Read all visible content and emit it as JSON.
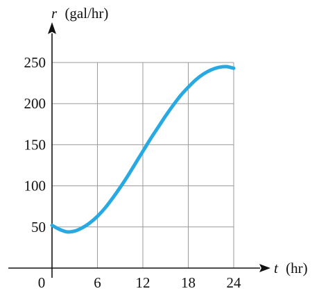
{
  "chart_data": {
    "type": "line",
    "title": "",
    "xlabel_var": "t",
    "xlabel_unit": "(hr)",
    "ylabel_var": "r",
    "ylabel_unit": "(gal/hr)",
    "xlim": [
      0,
      24
    ],
    "ylim": [
      0,
      250
    ],
    "origin_label": "0",
    "x_ticks": [
      6,
      12,
      18,
      24
    ],
    "y_ticks": [
      50,
      100,
      150,
      200,
      250
    ],
    "grid": true,
    "line_color": "#29a9e1",
    "series": [
      {
        "x": [
          0,
          1,
          2,
          3,
          4,
          5,
          6,
          7,
          8,
          9,
          10,
          11,
          12,
          13,
          14,
          15,
          16,
          17,
          18,
          19,
          20,
          21,
          22,
          23,
          24
        ],
        "y": [
          52,
          47,
          44,
          45,
          49,
          55,
          63,
          73,
          85,
          98,
          112,
          127,
          142,
          157,
          171,
          185,
          198,
          210,
          220,
          229,
          236,
          241,
          244,
          245,
          243
        ]
      }
    ]
  }
}
